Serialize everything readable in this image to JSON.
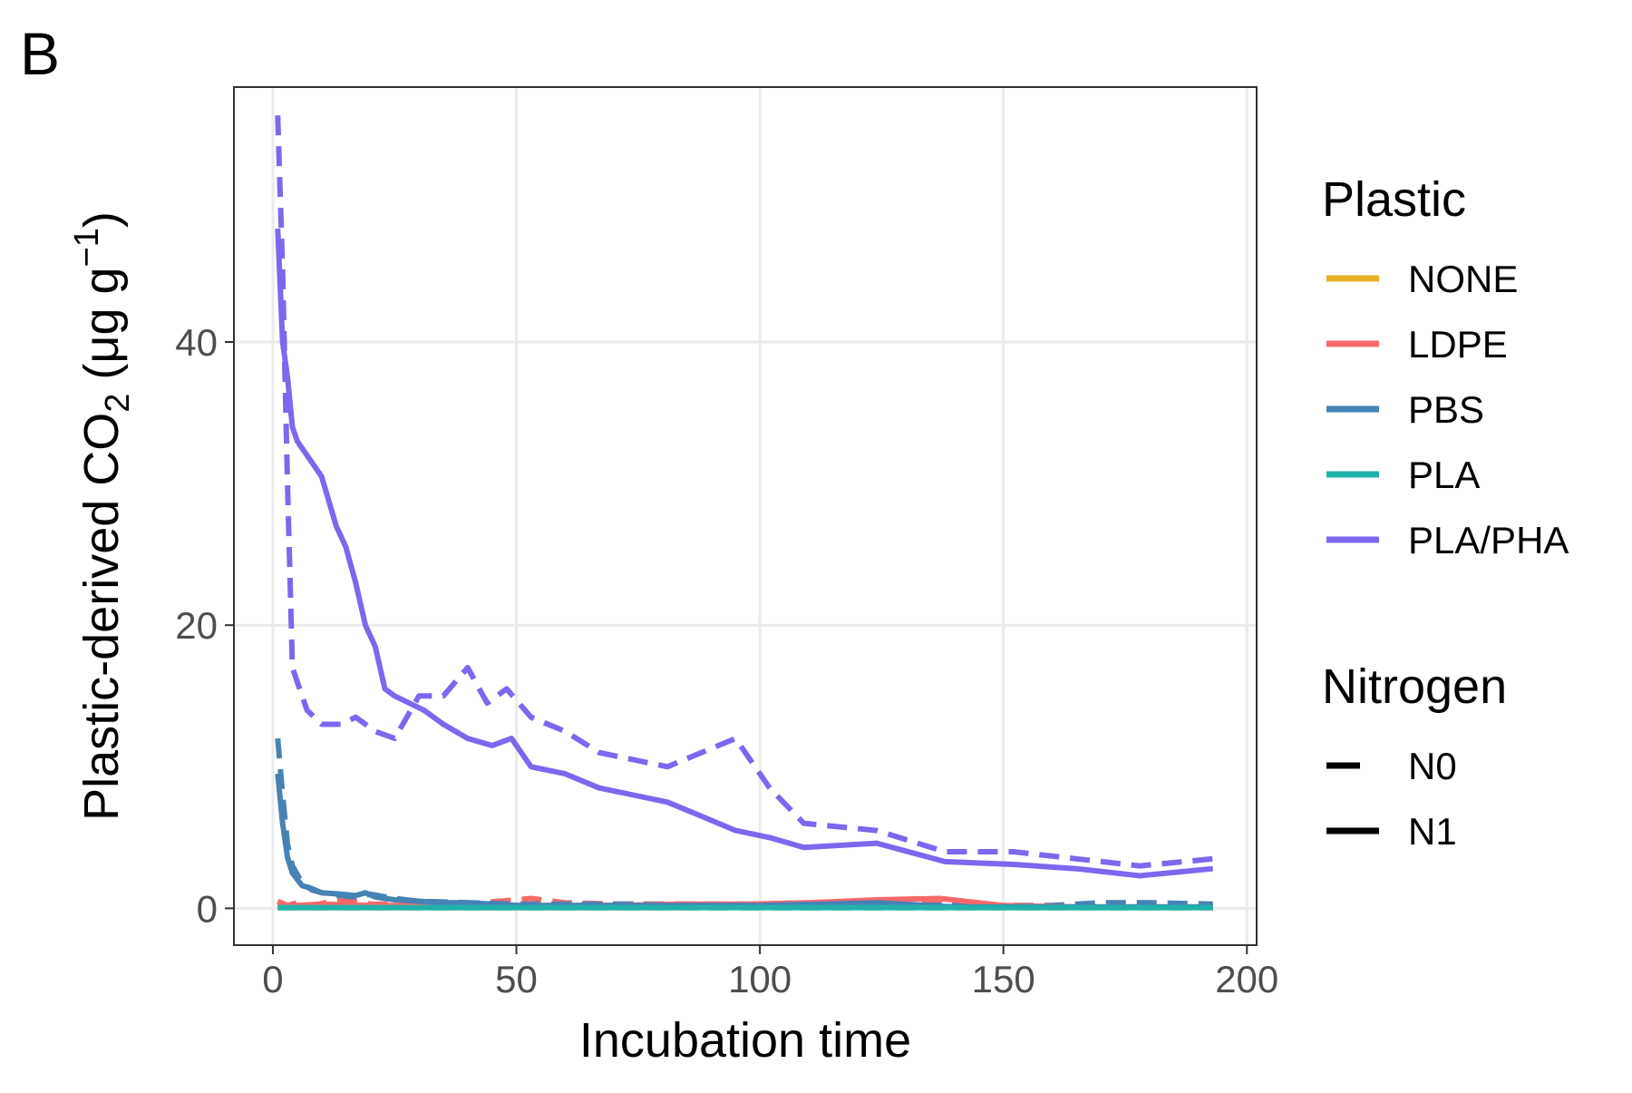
{
  "panel_label": "B",
  "chart_data": {
    "type": "line",
    "xlabel": "Incubation time",
    "ylabel_prefix": "Plastic-derived CO",
    "ylabel_sub": "2",
    "ylabel_unit_open": " (μg g",
    "ylabel_sup": "−1",
    "ylabel_unit_close": ")",
    "xlim": [
      -8,
      202
    ],
    "ylim": [
      -2.6,
      58
    ],
    "x_ticks": [
      0,
      50,
      100,
      150,
      200
    ],
    "x_tick_labels": [
      "0",
      "50",
      "100",
      "150",
      "200"
    ],
    "y_ticks": [
      0,
      20,
      40
    ],
    "y_tick_labels": [
      "0",
      "20",
      "40"
    ],
    "grid": true,
    "legend_position": "right",
    "legend": {
      "plastic_title": "Plastic",
      "plastic_items": [
        {
          "label": "NONE",
          "color": "#E6B122"
        },
        {
          "label": "LDPE",
          "color": "#F8696B"
        },
        {
          "label": "PBS",
          "color": "#4682B4"
        },
        {
          "label": "PLA",
          "color": "#20B2AA"
        },
        {
          "label": "PLA/PHA",
          "color": "#7B68EE"
        }
      ],
      "nitrogen_title": "Nitrogen",
      "nitrogen_items": [
        {
          "label": "N0",
          "dash": "dashed"
        },
        {
          "label": "N1",
          "dash": "solid"
        }
      ]
    },
    "series": [
      {
        "plastic": "NONE",
        "nitrogen": "N0",
        "color": "#E6B122",
        "dash": "dashed",
        "x": [
          1,
          14,
          28,
          42,
          56,
          70,
          84,
          98,
          112,
          126,
          140,
          154,
          168,
          182,
          193
        ],
        "y": [
          0.05,
          0.05,
          0.05,
          0.05,
          0.05,
          0.05,
          0.05,
          0.05,
          0.05,
          0.05,
          0.05,
          0.05,
          0.05,
          0.05,
          0.05
        ]
      },
      {
        "plastic": "NONE",
        "nitrogen": "N1",
        "color": "#E6B122",
        "dash": "solid",
        "x": [
          1,
          14,
          28,
          42,
          56,
          70,
          84,
          98,
          112,
          126,
          140,
          154,
          168,
          182,
          193
        ],
        "y": [
          0.05,
          0.05,
          0.05,
          0.05,
          0.05,
          0.05,
          0.05,
          0.1,
          0.1,
          0.15,
          0.05,
          0.05,
          0.05,
          0.05,
          0.05
        ]
      },
      {
        "plastic": "LDPE",
        "nitrogen": "N0",
        "color": "#F8696B",
        "dash": "dashed",
        "x": [
          1,
          3,
          5,
          8,
          14,
          20,
          30,
          40,
          53,
          60,
          70,
          84,
          98,
          112,
          124,
          137,
          150,
          165,
          180,
          193
        ],
        "y": [
          0.5,
          0.2,
          0.4,
          0.2,
          0.6,
          0.3,
          0.3,
          0.3,
          0.7,
          0.4,
          0.3,
          0.3,
          0.2,
          0.3,
          0.3,
          0.4,
          0.1,
          0.1,
          0.1,
          0.1
        ]
      },
      {
        "plastic": "LDPE",
        "nitrogen": "N1",
        "color": "#F8696B",
        "dash": "solid",
        "x": [
          1,
          5,
          10,
          20,
          30,
          42,
          56,
          70,
          84,
          98,
          110,
          124,
          137,
          150,
          165,
          180,
          193
        ],
        "y": [
          0.2,
          0.2,
          0.3,
          0.2,
          0.2,
          0.2,
          0.2,
          0.2,
          0.3,
          0.3,
          0.4,
          0.6,
          0.7,
          0.2,
          0.1,
          0.1,
          0.1
        ]
      },
      {
        "plastic": "PBS",
        "nitrogen": "N0",
        "color": "#4682B4",
        "dash": "dashed",
        "x": [
          1,
          2,
          3,
          4,
          6,
          8,
          10,
          14,
          17,
          20,
          25,
          30,
          40,
          50,
          60,
          80,
          100,
          120,
          140,
          160,
          170,
          180,
          193
        ],
        "y": [
          12,
          8,
          4.5,
          3,
          1.8,
          1.3,
          1.1,
          0.9,
          0.8,
          1.0,
          0.7,
          0.5,
          0.4,
          0.3,
          0.3,
          0.3,
          0.3,
          0.3,
          0.2,
          0.2,
          0.4,
          0.4,
          0.3
        ]
      },
      {
        "plastic": "PBS",
        "nitrogen": "N1",
        "color": "#4682B4",
        "dash": "solid",
        "x": [
          1,
          2,
          3,
          4,
          6,
          8,
          10,
          14,
          17,
          19,
          21,
          25,
          30,
          35,
          40,
          45,
          50,
          60,
          80,
          100,
          124,
          140,
          160,
          180,
          193
        ],
        "y": [
          9.5,
          6,
          3.6,
          2.5,
          1.6,
          1.4,
          1.1,
          1.0,
          0.9,
          1.1,
          0.8,
          0.6,
          0.5,
          0.4,
          0.4,
          0.3,
          0.2,
          0.2,
          0.2,
          0.2,
          0.4,
          0.1,
          0.1,
          0.1,
          0.1
        ]
      },
      {
        "plastic": "PLA",
        "nitrogen": "N0",
        "color": "#20B2AA",
        "dash": "dashed",
        "x": [
          1,
          14,
          28,
          42,
          56,
          70,
          84,
          98,
          112,
          126,
          140,
          154,
          168,
          182,
          193
        ],
        "y": [
          0.05,
          0.05,
          0.05,
          0.05,
          0.05,
          0.05,
          0.05,
          0.05,
          0.05,
          0.05,
          0.05,
          0.05,
          0.05,
          0.05,
          0.05
        ]
      },
      {
        "plastic": "PLA",
        "nitrogen": "N1",
        "color": "#20B2AA",
        "dash": "solid",
        "x": [
          1,
          14,
          28,
          42,
          56,
          70,
          84,
          98,
          112,
          126,
          140,
          154,
          168,
          182,
          193
        ],
        "y": [
          0.05,
          0.05,
          0.05,
          0.05,
          0.05,
          0.05,
          0.05,
          0.05,
          0.05,
          0.05,
          0.05,
          0.05,
          0.05,
          0.05,
          0.05
        ]
      },
      {
        "plastic": "PLA/PHA",
        "nitrogen": "N0",
        "color": "#7B68EE",
        "dash": "dashed",
        "x": [
          1,
          2,
          3,
          4,
          5,
          7,
          10,
          14,
          17,
          21,
          25,
          30,
          35,
          40,
          44,
          48,
          53,
          60,
          67,
          74,
          81,
          88,
          95,
          102,
          109,
          124,
          138,
          152,
          165,
          178,
          193
        ],
        "y": [
          56,
          45,
          30,
          17,
          16,
          14,
          13,
          13,
          13.5,
          12.5,
          12,
          15,
          15,
          17,
          14.5,
          15.5,
          13.5,
          12.5,
          11,
          10.5,
          10,
          11,
          12,
          8.5,
          6,
          5.5,
          4,
          4,
          3.5,
          3,
          3.5
        ]
      },
      {
        "plastic": "PLA/PHA",
        "nitrogen": "N1",
        "color": "#7B68EE",
        "dash": "solid",
        "x": [
          1,
          2,
          3,
          4,
          5,
          7,
          10,
          13,
          15,
          17,
          19,
          21,
          23,
          25,
          28,
          31,
          35,
          40,
          45,
          49,
          53,
          60,
          67,
          74,
          81,
          88,
          95,
          102,
          109,
          124,
          138,
          152,
          165,
          178,
          193
        ],
        "y": [
          48,
          40,
          37.5,
          34,
          33,
          32,
          30.5,
          27,
          25.5,
          23,
          20,
          18.5,
          15.5,
          15,
          14.5,
          14,
          13,
          12,
          11.5,
          12,
          10,
          9.5,
          8.5,
          8,
          7.5,
          6.5,
          5.5,
          5,
          4.3,
          4.6,
          3.3,
          3.1,
          2.8,
          2.3,
          2.8
        ]
      }
    ]
  }
}
